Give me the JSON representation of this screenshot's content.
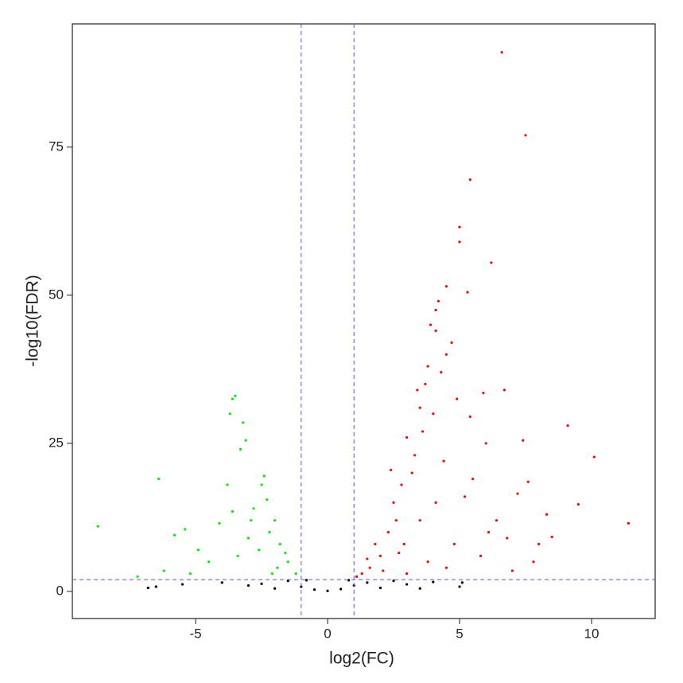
{
  "chart_data": {
    "type": "scatter",
    "xlabel": "log2(FC)",
    "ylabel": "-log10(FDR)",
    "xlim": [
      -9.67,
      12.41
    ],
    "ylim": [
      -4.57,
      95.8
    ],
    "xticks": [
      -5,
      0,
      5,
      10
    ],
    "yticks": [
      0,
      25,
      50,
      75
    ],
    "grid": false,
    "vlines": [
      -1,
      1
    ],
    "hlines": [
      2
    ],
    "threshold_color": "#5555ee",
    "series": [
      {
        "color": "#ff0000",
        "x": [
          6.6,
          7.5,
          5.4,
          5.0,
          5.0,
          6.2,
          4.5,
          5.3,
          4.2,
          4.1,
          3.9,
          4.1,
          4.7,
          4.5,
          3.8,
          4.3,
          3.7,
          3.4,
          6.7,
          5.9,
          4.9,
          3.5,
          4.0,
          5.4,
          9.1,
          7.4,
          3.0,
          10.1,
          7.6,
          11.4,
          9.5,
          8.3,
          8.5,
          7.2,
          2.5,
          2.8,
          3.2,
          6.1,
          4.8,
          2.0,
          1.6,
          1.3,
          2.3,
          3.5,
          2.9,
          4.1,
          5.5,
          6.4,
          7.8,
          3.8,
          1.8,
          2.6,
          3.3,
          4.4,
          5.2,
          6.8,
          7.0,
          2.1,
          1.1,
          3.0,
          4.5,
          5.8,
          2.4,
          3.6,
          1.5,
          2.7,
          8.0,
          6.0
        ],
        "y": [
          91,
          77,
          69.5,
          61.5,
          59,
          55.5,
          51.5,
          50.5,
          49,
          47.5,
          45,
          44,
          42,
          40,
          38,
          37,
          35,
          34,
          34,
          33.5,
          32.5,
          31,
          30,
          29.5,
          28,
          25.5,
          26,
          22.7,
          18.5,
          11.5,
          14.7,
          13,
          9.2,
          16.5,
          15,
          18,
          20,
          10,
          8,
          6,
          4,
          3,
          10,
          12,
          8,
          15,
          19,
          12,
          5,
          5,
          8,
          12,
          23,
          22,
          16,
          9,
          3.5,
          3.5,
          2.5,
          3,
          4,
          6,
          20.5,
          27,
          5.5,
          6.5,
          8,
          25
        ]
      },
      {
        "color": "#00ee00",
        "x": [
          -3.5,
          -3.6,
          -3.2,
          -3.7,
          -3.1,
          -3.3,
          -2.4,
          -2.5,
          -6.4,
          -3.8,
          -8.7,
          -5.4,
          -4.1,
          -5.8,
          -2.0,
          -1.8,
          -1.5,
          -1.2,
          -2.2,
          -2.8,
          -3.0,
          -3.4,
          -4.5,
          -6.2,
          -7.2,
          -2.6,
          -1.9,
          -2.3,
          -2.9,
          -3.6,
          -4.9,
          -5.2,
          -1.6,
          -2.1
        ],
        "y": [
          33,
          32.5,
          28.5,
          30,
          25.5,
          24,
          19.5,
          18,
          19,
          18,
          11,
          10.5,
          11.5,
          9.5,
          12,
          8,
          5,
          3,
          10,
          14,
          9,
          6,
          5,
          3.5,
          2.5,
          7,
          4,
          15.5,
          12,
          13.5,
          7,
          3,
          6.5,
          3
        ]
      },
      {
        "color": "#000000",
        "x": [
          -6.8,
          -6.5,
          -5.5,
          -4.0,
          -3.0,
          -2.0,
          -1.0,
          -0.5,
          0,
          0.5,
          1.0,
          1.5,
          2.0,
          3.0,
          4.0,
          5.0,
          5.1,
          -0.8,
          0.8,
          -1.5,
          2.5,
          -2.5,
          3.5
        ],
        "y": [
          0.6,
          0.8,
          1.2,
          1.5,
          1.0,
          0.5,
          0.8,
          0.3,
          0.1,
          0.4,
          1.0,
          1.5,
          0.6,
          1.2,
          1.6,
          0.8,
          1.5,
          1.9,
          1.9,
          1.8,
          1.8,
          1.3,
          0.5
        ]
      }
    ]
  }
}
